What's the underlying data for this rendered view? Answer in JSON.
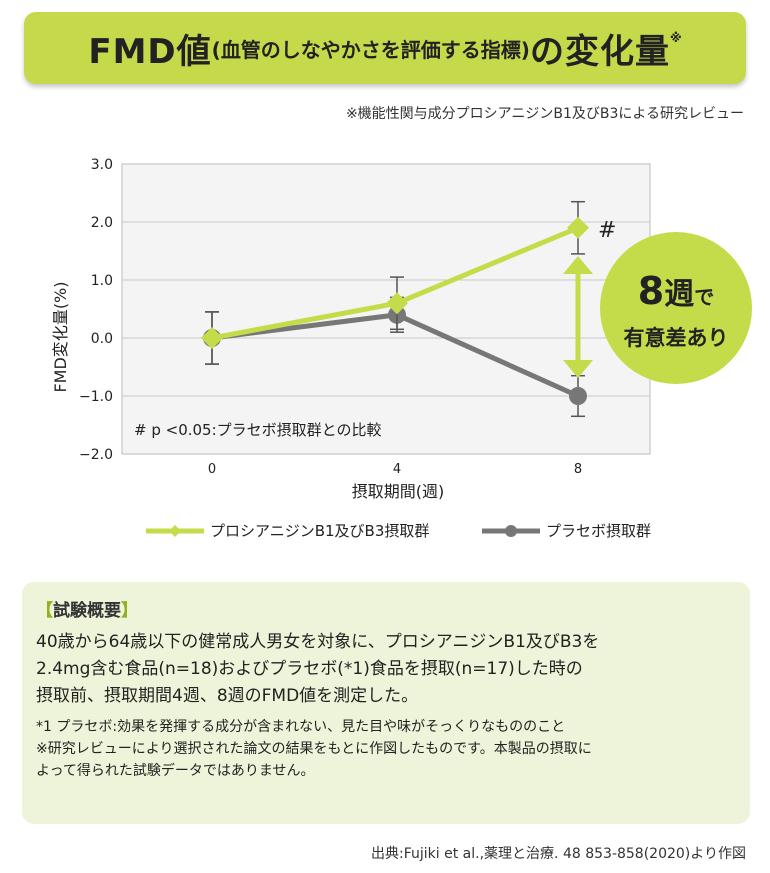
{
  "header": {
    "title_main": "FMD値",
    "title_paren": "(血管のしなやかさを評価する指標)",
    "title_tail": "の変化量",
    "title_mark": "※",
    "subnote": "※機能性関与成分プロシアニジンB1及びB3による研究レビュー"
  },
  "chart_data": {
    "type": "line",
    "x": [
      0,
      4,
      8
    ],
    "xlabel": "摂取期間(週)",
    "ylabel": "FMD変化量(%)",
    "ylim": [
      -2.0,
      3.0
    ],
    "yticks": [
      "3.0",
      "2.0",
      "1.0",
      "0.0",
      "−1.0",
      "−2.0"
    ],
    "xticks": [
      "0",
      "4",
      "8"
    ],
    "series": [
      {
        "name": "プロシアニジンB1及びB3摂取群",
        "values": [
          0.0,
          0.6,
          1.9
        ],
        "err": [
          0.45,
          0.45,
          0.45
        ],
        "color": "#c4dc4a",
        "marker": "diamond"
      },
      {
        "name": "プラセボ摂取群",
        "values": [
          0.0,
          0.4,
          -1.0
        ],
        "err": [
          0.45,
          0.3,
          0.35
        ],
        "color": "#777777",
        "marker": "circle"
      }
    ],
    "significance_mark": "#",
    "annotation_note": "# p <0.05:プラセボ摂取群との比較",
    "callout_num": "8",
    "callout_unit": "週",
    "callout_de": "で",
    "callout_text": "有意差あり",
    "grid": true,
    "legend": "bottom"
  },
  "summary": {
    "heading_open": "【",
    "heading": "試験概要",
    "heading_close": "】",
    "line1": "40歳から64歳以下の健常成人男女を対象に、プロシアニジンB1及びB3を",
    "line2": "2.4mg含む食品(n=18)およびプラセボ(*1)食品を摂取(n=17)した時の",
    "line3": "摂取前、摂取期間4週、8週のFMD値を測定した。",
    "note1": "*1 プラセボ:効果を発揮する成分が含まれない、見た目や味がそっくりなもののこと",
    "note2a": "※研究レビューにより選択された論文の結果をもとに作図したものです。本製品の摂取に",
    "note2b": "よって得られた試験データではありません。"
  },
  "source": "出典:Fujiki et al.,薬理と治療. 48 853-858(2020)より作図"
}
